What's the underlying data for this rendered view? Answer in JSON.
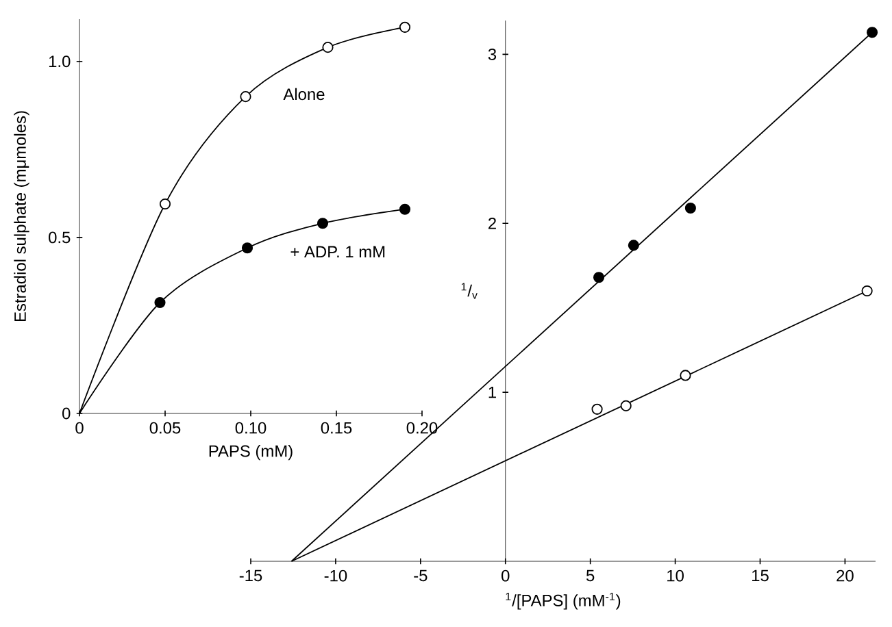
{
  "chart_data": [
    {
      "type": "line",
      "xlabel": "PAPS (mM)",
      "ylabel": "Estradiol sulphate (mμmoles)",
      "xlim": [
        0,
        0.2
      ],
      "ylim": [
        0,
        1.12
      ],
      "xticks": [
        0,
        0.05,
        {
          "value": 0.1,
          "label": "0.10"
        },
        0.15,
        {
          "value": 0.2,
          "label": "0.20"
        }
      ],
      "yticks": [
        0,
        0.5,
        {
          "value": 1,
          "label": "1.0"
        }
      ],
      "annotations": [
        "Alone",
        "+ ADP. 1 mM"
      ],
      "series": [
        {
          "color": "#000000",
          "x": [
            0,
            0.05,
            0.097,
            0.145,
            0.19
          ],
          "values": [
            0,
            0.595,
            0.9,
            1.04,
            1.097
          ]
        },
        {
          "color": "#000000",
          "x": [
            0,
            0.047,
            0.098,
            0.142,
            0.19
          ],
          "values": [
            0,
            0.315,
            0.47,
            0.54,
            0.58
          ]
        },
        {
          "type": "scatter",
          "color": "#ffffff",
          "marker": "circle",
          "x": [
            0.05,
            0.097,
            0.145,
            0.19
          ],
          "values": [
            0.595,
            0.9,
            1.04,
            1.097
          ]
        },
        {
          "type": "scatter",
          "color": "#000000",
          "marker": "circle",
          "x": [
            0.047,
            0.098,
            0.142,
            0.19
          ],
          "values": [
            0.315,
            0.47,
            0.54,
            0.58
          ]
        }
      ]
    },
    {
      "type": "line",
      "xlabel": "$^{1}$/[PAPS] (mM$^{-1}$)",
      "ylabel": "$^{1}$/$_{v}$",
      "xlim": [
        -15,
        21.8
      ],
      "ylim": [
        0,
        3.2
      ],
      "xticks": [
        -15,
        -10,
        -5,
        0,
        5,
        10,
        15,
        20
      ],
      "yticks": [
        1,
        2,
        3
      ],
      "series": [
        {
          "color": "#000000",
          "x": [
            -12.6,
            21.6
          ],
          "values": [
            0,
            3.13
          ]
        },
        {
          "color": "#000000",
          "x": [
            -12.6,
            21.3
          ],
          "values": [
            0,
            1.6
          ]
        },
        {
          "type": "scatter",
          "color": "#000000",
          "marker": "circle",
          "x": [
            5.5,
            7.55,
            10.9,
            21.6
          ],
          "values": [
            1.68,
            1.87,
            2.09,
            3.13
          ]
        },
        {
          "type": "scatter",
          "color": "#ffffff",
          "marker": "circle",
          "x": [
            5.4,
            7.1,
            10.6,
            21.3
          ],
          "values": [
            0.9,
            0.92,
            1.1,
            1.6
          ]
        }
      ]
    }
  ]
}
